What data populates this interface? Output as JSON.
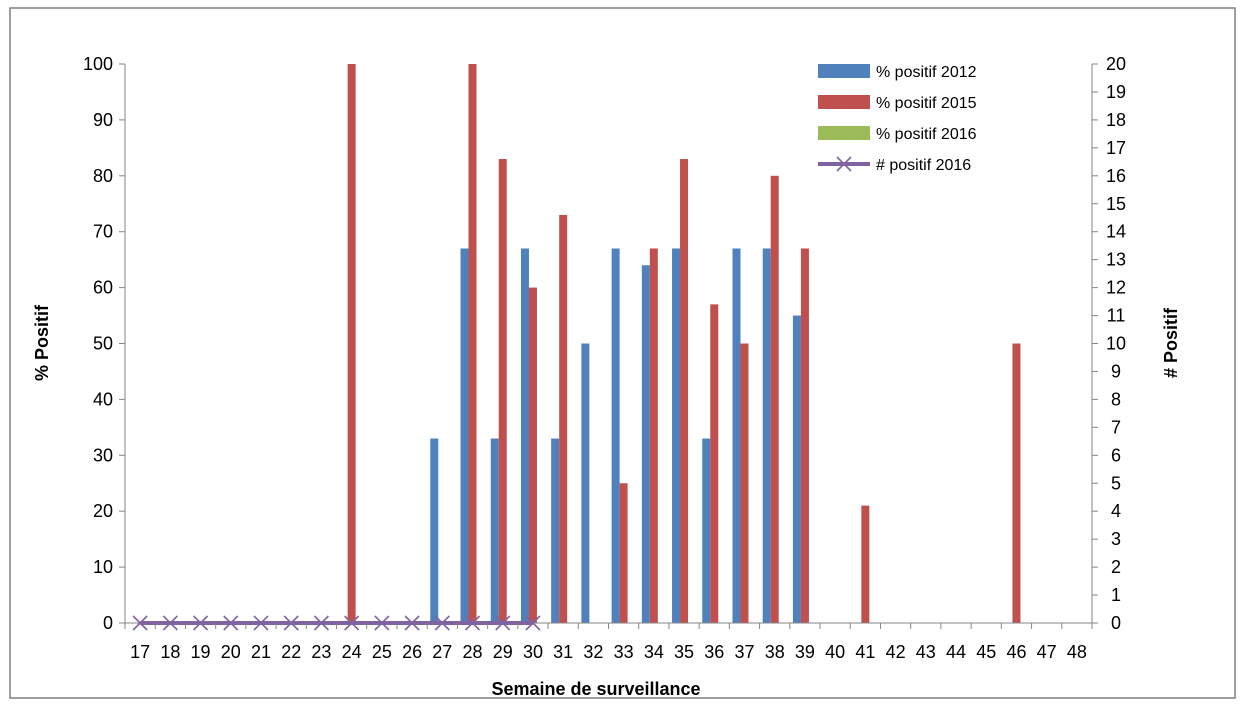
{
  "chart_data": {
    "type": "bar",
    "categories": [
      "17",
      "18",
      "19",
      "20",
      "21",
      "22",
      "23",
      "24",
      "25",
      "26",
      "27",
      "28",
      "29",
      "30",
      "31",
      "32",
      "33",
      "34",
      "35",
      "36",
      "37",
      "38",
      "39",
      "40",
      "41",
      "42",
      "43",
      "44",
      "45",
      "46",
      "47",
      "48"
    ],
    "xlabel": "Semaine de surveillance",
    "ylabel": "% Positif",
    "y2label": "# Positif",
    "ylim": [
      0,
      100
    ],
    "y2lim": [
      0,
      20
    ],
    "yticks": [
      "0",
      "10",
      "20",
      "30",
      "40",
      "50",
      "60",
      "70",
      "80",
      "90",
      "100"
    ],
    "y2ticks": [
      "0",
      "1",
      "2",
      "3",
      "4",
      "5",
      "6",
      "7",
      "8",
      "9",
      "10",
      "11",
      "12",
      "13",
      "14",
      "15",
      "16",
      "17",
      "18",
      "19",
      "20"
    ],
    "legend_position": "top-right",
    "grid": false,
    "series": [
      {
        "name": "% positif 2012",
        "kind": "bar",
        "axis": "left",
        "color": "#4f81bd",
        "values": [
          null,
          null,
          null,
          null,
          null,
          null,
          null,
          null,
          null,
          null,
          33,
          67,
          33,
          67,
          33,
          50,
          67,
          64,
          67,
          33,
          67,
          67,
          55,
          null,
          null,
          null,
          null,
          null,
          null,
          null,
          null,
          null
        ]
      },
      {
        "name": "% positif 2015",
        "kind": "bar",
        "axis": "left",
        "color": "#c0504d",
        "values": [
          null,
          null,
          null,
          null,
          null,
          null,
          null,
          100,
          null,
          null,
          null,
          100,
          83,
          60,
          73,
          null,
          25,
          67,
          83,
          57,
          50,
          80,
          67,
          null,
          21,
          null,
          null,
          null,
          null,
          50,
          null,
          null
        ]
      },
      {
        "name": "% positif 2016",
        "kind": "bar",
        "axis": "left",
        "color": "#9bbb59",
        "values": [
          null,
          null,
          null,
          null,
          null,
          null,
          null,
          null,
          null,
          null,
          null,
          null,
          null,
          null,
          null,
          null,
          null,
          null,
          null,
          null,
          null,
          null,
          null,
          null,
          null,
          null,
          null,
          null,
          null,
          null,
          null,
          null
        ]
      },
      {
        "name": "# positif 2016",
        "kind": "line",
        "axis": "right",
        "color": "#8064a2",
        "marker": "x",
        "values": [
          0,
          0,
          0,
          0,
          0,
          0,
          0,
          0,
          0,
          0,
          0,
          0,
          0,
          0,
          null,
          null,
          null,
          null,
          null,
          null,
          null,
          null,
          null,
          null,
          null,
          null,
          null,
          null,
          null,
          null,
          null,
          null
        ]
      }
    ]
  }
}
